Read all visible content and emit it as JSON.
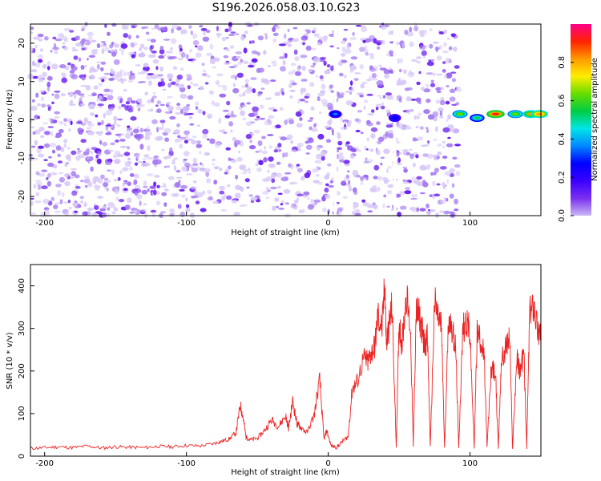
{
  "title": "S196.2026.058.03.10.G23",
  "chart_data": [
    {
      "type": "heatmap",
      "xlabel": "Height of straight line (km)",
      "ylabel": "Frequency (Hz)",
      "xlim": [
        -210,
        150
      ],
      "ylim": [
        -25,
        25
      ],
      "xticks": [
        -200,
        -100,
        0,
        100
      ],
      "yticks": [
        -20,
        -10,
        0,
        10,
        20
      ],
      "colorbar": {
        "label": "Normalized spectral amplitude",
        "range": [
          0,
          1
        ],
        "ticks": [
          0.0,
          0.2,
          0.4,
          0.6,
          0.8
        ],
        "colormap": [
          "#ffffff",
          "#c9b8f5",
          "#7a2ff0",
          "#3a00ff",
          "#0000ff",
          "#0088ff",
          "#00e6e6",
          "#00cc44",
          "#66dd00",
          "#ffee00",
          "#ff9900",
          "#ff2200",
          "#ff0088"
        ]
      },
      "noise_region_x": [
        -210,
        92
      ],
      "gap_lines_x": [
        5,
        47
      ],
      "signal_features": [
        {
          "x": 5,
          "y": 1.5,
          "amp": 0.35
        },
        {
          "x": 47,
          "y": 0.5,
          "amp": 0.3
        },
        {
          "x": 93,
          "y": 1.5,
          "amp": 0.6
        },
        {
          "x": 105,
          "y": 0.5,
          "amp": 0.55
        },
        {
          "x": 118,
          "y": 1.5,
          "amp": 0.9
        },
        {
          "x": 132,
          "y": 1.5,
          "amp": 0.65
        },
        {
          "x": 143,
          "y": 1.5,
          "amp": 0.75
        },
        {
          "x": 149,
          "y": 1.5,
          "amp": 0.8
        }
      ]
    },
    {
      "type": "line",
      "xlabel": "Height of straight line (km)",
      "ylabel": "SNR (10 * v/v)",
      "xlim": [
        -210,
        150
      ],
      "ylim": [
        0,
        450
      ],
      "xticks": [
        -200,
        -100,
        0,
        100
      ],
      "yticks": [
        0,
        100,
        200,
        300,
        400
      ],
      "color": "#ee2222",
      "x": [
        -210,
        -200,
        -190,
        -180,
        -170,
        -160,
        -150,
        -140,
        -130,
        -120,
        -110,
        -100,
        -90,
        -80,
        -75,
        -70,
        -65,
        -62,
        -60,
        -58,
        -55,
        -50,
        -45,
        -40,
        -35,
        -30,
        -28,
        -25,
        -22,
        -20,
        -15,
        -10,
        -6,
        -3,
        -1,
        2,
        6,
        10,
        14,
        17,
        20,
        25,
        28,
        30,
        33,
        35,
        38,
        40,
        41,
        43,
        45,
        48,
        50,
        52,
        55,
        58,
        60,
        62,
        64,
        66,
        68,
        70,
        72,
        75,
        78,
        80,
        82,
        85,
        88,
        90,
        92,
        95,
        98,
        100,
        103,
        105,
        108,
        110,
        112,
        115,
        118,
        120,
        122,
        125,
        128,
        130,
        133,
        135,
        138,
        140,
        142,
        145,
        148,
        150
      ],
      "y": [
        18,
        20,
        22,
        20,
        24,
        19,
        22,
        21,
        20,
        23,
        22,
        25,
        24,
        30,
        35,
        40,
        55,
        120,
        90,
        45,
        38,
        42,
        60,
        85,
        70,
        95,
        65,
        130,
        75,
        70,
        55,
        95,
        180,
        40,
        60,
        25,
        20,
        35,
        45,
        160,
        170,
        230,
        220,
        240,
        260,
        330,
        300,
        410,
        260,
        310,
        350,
        20,
        320,
        260,
        380,
        300,
        20,
        340,
        330,
        300,
        260,
        280,
        20,
        360,
        320,
        300,
        20,
        330,
        290,
        250,
        20,
        300,
        320,
        280,
        20,
        290,
        270,
        230,
        20,
        210,
        190,
        20,
        220,
        250,
        280,
        20,
        230,
        200,
        240,
        20,
        330,
        360,
        290,
        300
      ]
    }
  ]
}
